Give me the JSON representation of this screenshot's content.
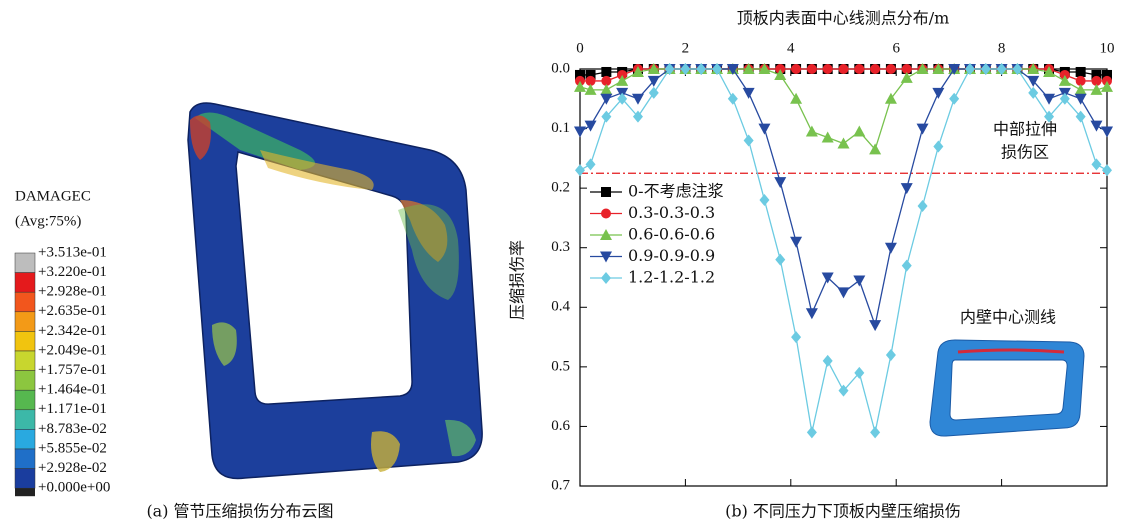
{
  "contour": {
    "legend_title": "DAMAGEC",
    "legend_subtitle": "(Avg:75%)",
    "levels": [
      "+3.513e-01",
      "+3.220e-01",
      "+2.928e-01",
      "+2.635e-01",
      "+2.342e-01",
      "+2.049e-01",
      "+1.757e-01",
      "+1.464e-01",
      "+1.171e-01",
      "+8.783e-02",
      "+5.855e-02",
      "+2.928e-02",
      "+0.000e+00"
    ],
    "colors": [
      "#bdbdbd",
      "#e41a1c",
      "#f2561d",
      "#f39a17",
      "#f1c40f",
      "#c8d62e",
      "#8cc63f",
      "#56b84f",
      "#3cb8a8",
      "#29a9e0",
      "#1f6fc8",
      "#1a3d9e"
    ],
    "caption": "(a) 管节压缩损伤分布云图"
  },
  "chart_data": {
    "type": "line",
    "x_label": "顶板内表面中心线测点分布/m",
    "y_label": "压缩损伤率",
    "caption": "(b) 不同压力下顶板内壁压缩损伤",
    "x_axis_position": "top",
    "y_inverted": true,
    "x": [
      0,
      0.2,
      0.5,
      0.8,
      1.1,
      1.4,
      1.7,
      2.0,
      2.3,
      2.6,
      2.9,
      3.2,
      3.5,
      3.8,
      4.1,
      4.4,
      4.7,
      5.0,
      5.3,
      5.6,
      5.9,
      6.2,
      6.5,
      6.8,
      7.1,
      7.4,
      7.7,
      8.0,
      8.3,
      8.6,
      8.9,
      9.2,
      9.5,
      9.8,
      10
    ],
    "xlim": [
      0,
      10
    ],
    "xticks": [
      0,
      2,
      4,
      6,
      8,
      10
    ],
    "ylim": [
      0,
      0.7
    ],
    "yticks": [
      {
        "value": 0,
        "label": "0.0"
      },
      0.1,
      0.2,
      0.3,
      0.4,
      0.5,
      0.6,
      0.7
    ],
    "series": [
      {
        "name": "0-不考虑注浆",
        "color": "#000000",
        "marker": "square",
        "values": [
          0.01,
          0.01,
          0.005,
          0.005,
          0,
          0,
          0,
          0,
          0,
          0,
          0,
          0,
          0,
          0,
          0,
          0,
          0,
          0,
          0,
          0,
          0,
          0,
          0,
          0,
          0,
          0,
          0,
          0,
          0,
          0,
          0,
          0.005,
          0.005,
          0.01,
          0.01
        ]
      },
      {
        "name": "0.3-0.3-0.3",
        "color": "#e8222a",
        "marker": "circle",
        "values": [
          0.02,
          0.02,
          0.02,
          0.01,
          0,
          0,
          0,
          0,
          0,
          0,
          0,
          0,
          0,
          0,
          0,
          0,
          0,
          0,
          0,
          0,
          0,
          0,
          0,
          0,
          0,
          0,
          0,
          0,
          0,
          0,
          0,
          0.01,
          0.02,
          0.02,
          0.02
        ]
      },
      {
        "name": "0.6-0.6-0.6",
        "color": "#78c24e",
        "marker": "triangle-up",
        "values": [
          0.03,
          0.035,
          0.035,
          0.02,
          0.005,
          0,
          0,
          0,
          0,
          0,
          0,
          0,
          0,
          0.01,
          0.05,
          0.105,
          0.115,
          0.125,
          0.105,
          0.135,
          0.05,
          0.015,
          0,
          0,
          0,
          0,
          0,
          0,
          0,
          0,
          0.005,
          0.02,
          0.035,
          0.035,
          0.03
        ]
      },
      {
        "name": "0.9-0.9-0.9",
        "color": "#274aa0",
        "marker": "triangle-down",
        "values": [
          0.105,
          0.095,
          0.05,
          0.04,
          0.05,
          0.02,
          0,
          0,
          0,
          0,
          0,
          0.04,
          0.1,
          0.19,
          0.29,
          0.41,
          0.35,
          0.375,
          0.355,
          0.43,
          0.3,
          0.2,
          0.1,
          0.04,
          0,
          0,
          0,
          0,
          0,
          0.02,
          0.05,
          0.04,
          0.05,
          0.095,
          0.105
        ]
      },
      {
        "name": "1.2-1.2-1.2",
        "color": "#6ccbe2",
        "marker": "diamond",
        "values": [
          0.17,
          0.16,
          0.08,
          0.05,
          0.08,
          0.04,
          0,
          0,
          0,
          0,
          0.05,
          0.12,
          0.22,
          0.32,
          0.45,
          0.61,
          0.49,
          0.54,
          0.51,
          0.61,
          0.48,
          0.33,
          0.23,
          0.13,
          0.05,
          0,
          0,
          0,
          0,
          0.04,
          0.08,
          0.05,
          0.08,
          0.16,
          0.17
        ]
      }
    ],
    "legend_position": "left",
    "reference_line": {
      "y": 0.175,
      "color": "#e41a1c"
    },
    "annotation": [
      "中部拉伸",
      "损伤区"
    ],
    "inset_label": "内壁中心测线"
  }
}
